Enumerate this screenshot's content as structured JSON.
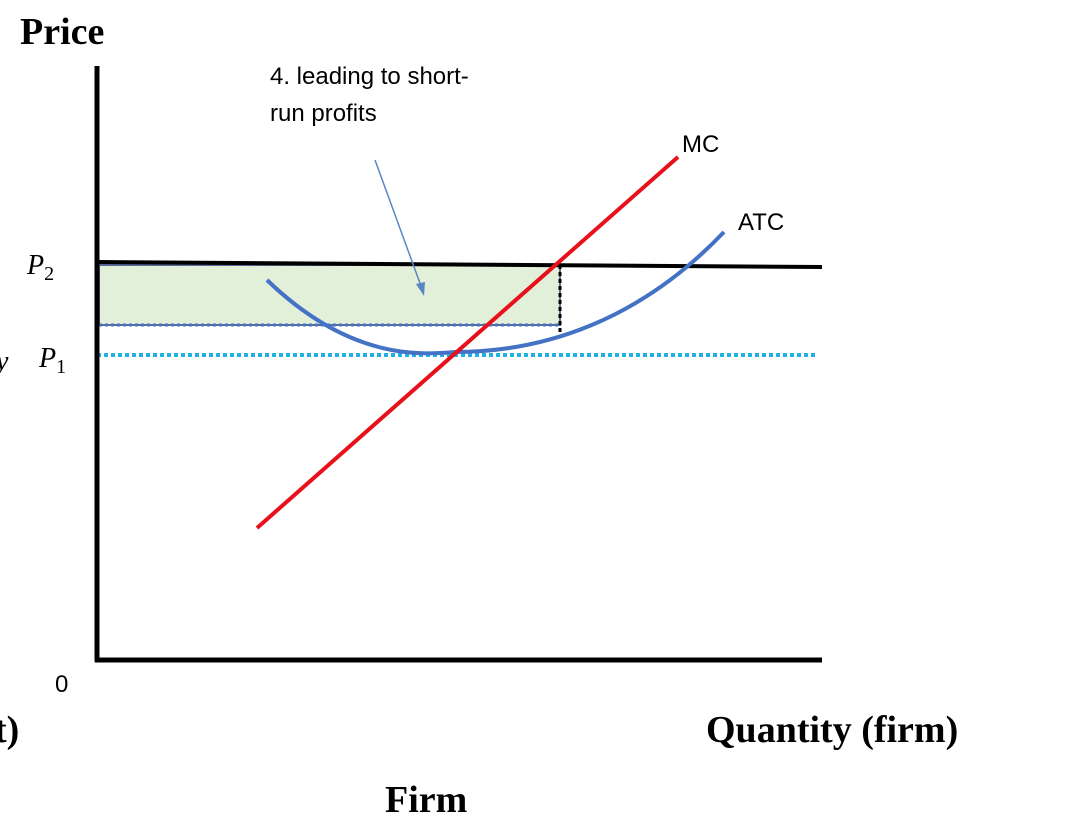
{
  "axis_label_y": "Price",
  "axis_label_x": "Quantity (firm)",
  "caption": "Firm",
  "cropped_left_bottom": "t)",
  "cropped_left_middle": "y",
  "origin_label": "0",
  "annotation": {
    "lines": [
      "4. leading to short-",
      "run profits"
    ]
  },
  "curves": {
    "mc": "MC",
    "atc": "ATC"
  },
  "price_levels": [
    {
      "symbol": "P",
      "subscript": "2"
    },
    {
      "symbol": "P",
      "subscript": "1"
    }
  ]
}
